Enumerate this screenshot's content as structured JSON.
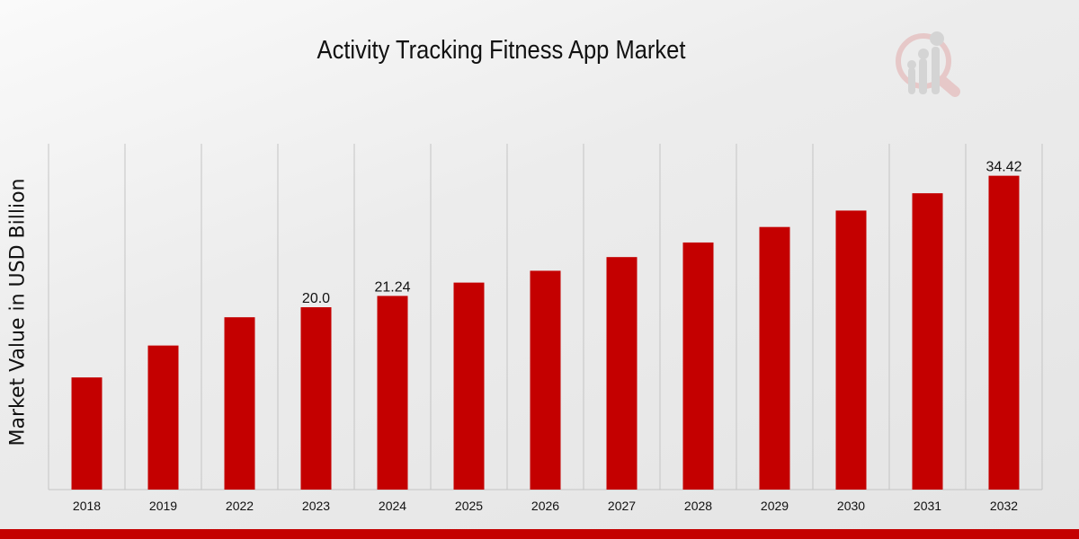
{
  "chart_data": {
    "type": "bar",
    "title": "Activity Tracking Fitness App Market",
    "xlabel": "",
    "ylabel": "Market Value in USD Billion",
    "categories": [
      "2018",
      "2019",
      "2022",
      "2023",
      "2024",
      "2025",
      "2026",
      "2027",
      "2028",
      "2029",
      "2030",
      "2031",
      "2032"
    ],
    "values": [
      12.3,
      15.8,
      18.9,
      20.0,
      21.24,
      22.7,
      24.0,
      25.5,
      27.1,
      28.8,
      30.6,
      32.5,
      34.42
    ],
    "data_labels": {
      "3": "20.0",
      "4": "21.24",
      "12": "34.42"
    },
    "ylim": [
      0,
      38
    ],
    "grid": "vertical",
    "bar_color": "#c40000"
  }
}
